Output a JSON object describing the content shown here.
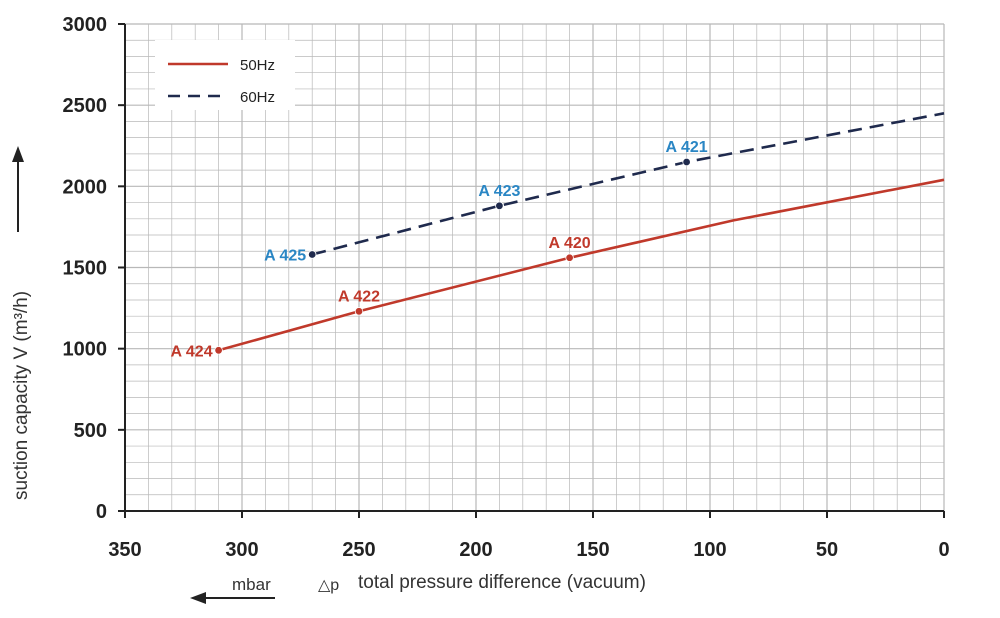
{
  "colors": {
    "s50": "#c0392b",
    "s60": "#1f2a4d",
    "label60": "#2a86c4",
    "label50": "#c0392b",
    "grid": "#b8b8b8",
    "axis": "#222222"
  },
  "chart_data": {
    "type": "line",
    "title": "",
    "xlabel": "total pressure difference (vacuum)",
    "xlabel_symbol": "△p",
    "x_unit": "mbar",
    "ylabel": "suction capacity V (m³/h)",
    "xlim": [
      350,
      0
    ],
    "ylim": [
      0,
      3000
    ],
    "x_ticks": [
      "350",
      "300",
      "250",
      "200",
      "150",
      "100",
      "50",
      "0"
    ],
    "y_ticks": [
      "0",
      "500",
      "1000",
      "1500",
      "2000",
      "2500",
      "3000"
    ],
    "legend": [
      "50Hz",
      "60Hz"
    ],
    "series": [
      {
        "name": "50Hz",
        "style": "solid",
        "x": [
          310,
          250,
          160,
          90,
          0
        ],
        "y": [
          990,
          1230,
          1560,
          1790,
          2040
        ],
        "points": [
          {
            "label": "A 424",
            "x": 310,
            "y": 990
          },
          {
            "label": "A 422",
            "x": 250,
            "y": 1230
          },
          {
            "label": "A 420",
            "x": 160,
            "y": 1560
          }
        ]
      },
      {
        "name": "60Hz",
        "style": "dashed",
        "x": [
          270,
          190,
          110,
          0
        ],
        "y": [
          1580,
          1880,
          2150,
          2450
        ],
        "points": [
          {
            "label": "A 425",
            "x": 270,
            "y": 1580
          },
          {
            "label": "A 423",
            "x": 190,
            "y": 1880
          },
          {
            "label": "A 421",
            "x": 110,
            "y": 2150
          }
        ]
      }
    ]
  }
}
